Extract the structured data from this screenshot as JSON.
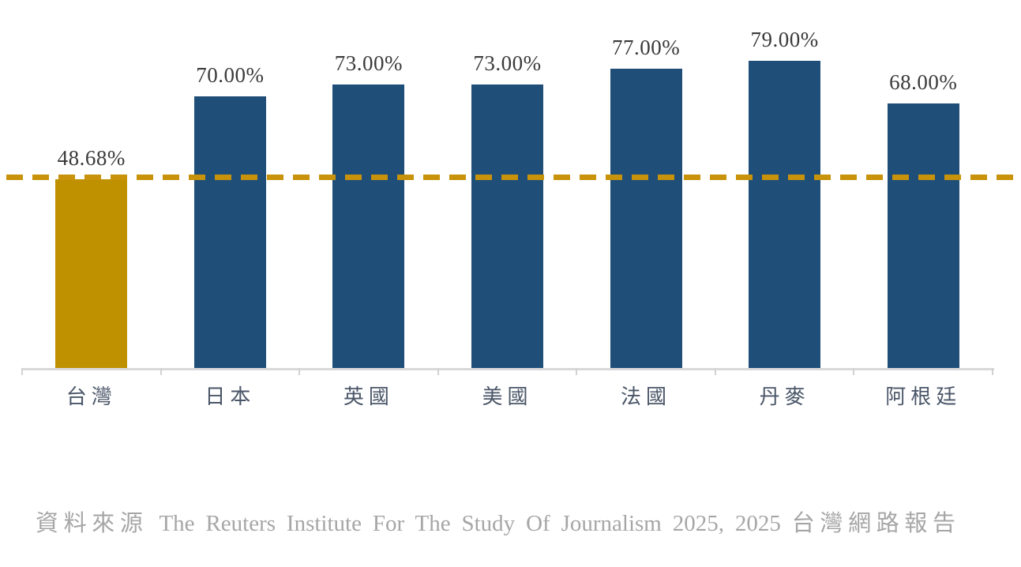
{
  "chart_data": {
    "type": "bar",
    "title": "",
    "categories": [
      "台灣",
      "日本",
      "英國",
      "美國",
      "法國",
      "丹麥",
      "阿根廷"
    ],
    "values": [
      48.68,
      70.0,
      73.0,
      73.0,
      77.0,
      79.0,
      68.0
    ],
    "value_labels": [
      "48.68%",
      "70.00%",
      "73.00%",
      "73.00%",
      "77.00%",
      "79.00%",
      "68.00%"
    ],
    "highlight_index": 0,
    "reference_line": {
      "value": 48.68,
      "style": "dashed"
    },
    "ylim": [
      0,
      95
    ],
    "grid": false,
    "legend": false,
    "xlabel": "",
    "ylabel": "",
    "source": "資料來源 The Reuters Institute For The Study Of Journalism 2025, 2025 台灣網路報告",
    "colors": {
      "highlight_bar": "#BF9000",
      "default_bar": "#1F4E79",
      "reference_line": "#C8920A",
      "axis_line": "#D9D9D9",
      "tick": "#D2D2D2",
      "value_label": "#3A3A3A",
      "category_label": "#4A5668",
      "source_text": "#A6A6A6"
    }
  }
}
